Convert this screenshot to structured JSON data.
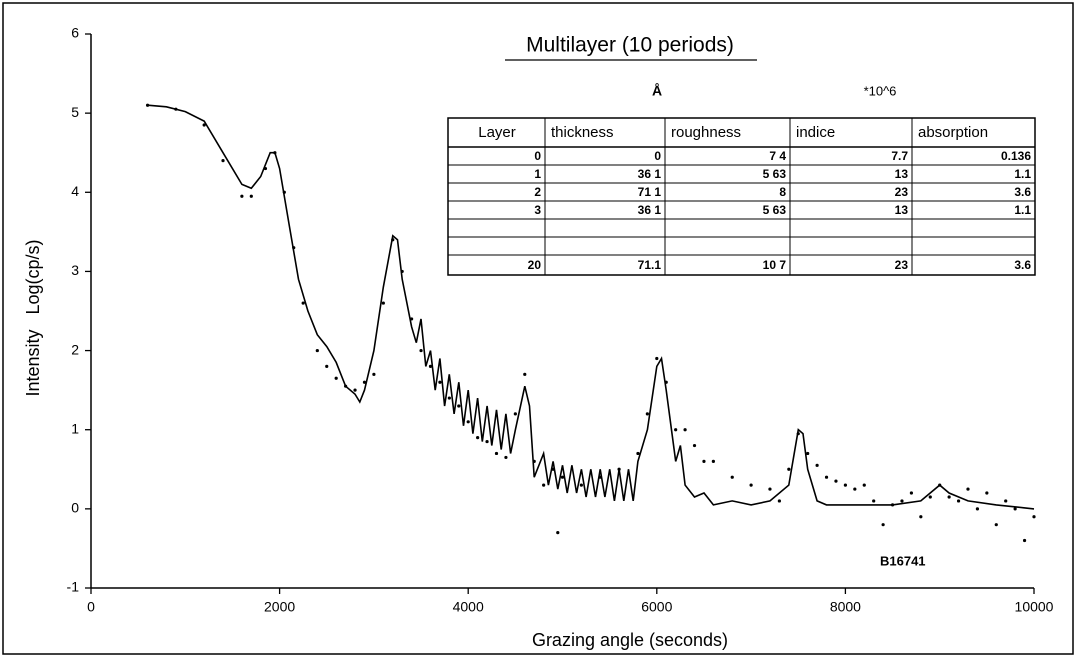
{
  "chart_data": {
    "type": "line",
    "title": "Multilayer (10 periods)",
    "xlabel": "Grazing angle (seconds)",
    "ylabel": "Intensity   Log(cp/s)",
    "annotation": "B16741",
    "xlim": [
      0,
      10000
    ],
    "xticks": [
      0,
      2000,
      4000,
      6000,
      8000,
      10000
    ],
    "ylim": [
      -1,
      6
    ],
    "yticks": [
      -1,
      0,
      1,
      2,
      3,
      4,
      5,
      6
    ],
    "series": [
      {
        "mode": "line",
        "color": "#000000",
        "x": [
          600,
          800,
          1000,
          1200,
          1400,
          1600,
          1700,
          1800,
          1900,
          1950,
          2000,
          2100,
          2200,
          2300,
          2400,
          2500,
          2600,
          2700,
          2800,
          2850,
          2900,
          3000,
          3100,
          3200,
          3250,
          3300,
          3400,
          3450,
          3500,
          3550,
          3600,
          3650,
          3700,
          3750,
          3800,
          3850,
          3900,
          3950,
          4000,
          4050,
          4100,
          4150,
          4200,
          4250,
          4300,
          4350,
          4400,
          4450,
          4500,
          4600,
          4650,
          4700,
          4800,
          4850,
          4900,
          4950,
          5000,
          5050,
          5100,
          5150,
          5200,
          5250,
          5300,
          5350,
          5400,
          5450,
          5500,
          5550,
          5600,
          5650,
          5700,
          5750,
          5800,
          5900,
          6000,
          6050,
          6100,
          6200,
          6250,
          6300,
          6400,
          6500,
          6600,
          6800,
          7000,
          7200,
          7400,
          7500,
          7550,
          7600,
          7700,
          7800,
          8000,
          8500,
          8800,
          9000,
          9100,
          9300,
          9600,
          10000
        ],
        "values": [
          5.1,
          5.08,
          5.02,
          4.9,
          4.5,
          4.1,
          4.05,
          4.2,
          4.5,
          4.5,
          4.3,
          3.6,
          2.9,
          2.5,
          2.2,
          2.05,
          1.85,
          1.55,
          1.45,
          1.35,
          1.5,
          2.0,
          2.8,
          3.45,
          3.4,
          2.9,
          2.3,
          2.1,
          2.4,
          1.8,
          2.0,
          1.5,
          1.9,
          1.3,
          1.7,
          1.2,
          1.6,
          1.05,
          1.5,
          0.95,
          1.4,
          0.85,
          1.3,
          0.8,
          1.25,
          0.75,
          1.2,
          0.7,
          1.0,
          1.55,
          1.3,
          0.4,
          0.7,
          0.3,
          0.6,
          0.25,
          0.55,
          0.2,
          0.55,
          0.2,
          0.5,
          0.15,
          0.5,
          0.15,
          0.5,
          0.15,
          0.5,
          0.1,
          0.5,
          0.1,
          0.5,
          0.1,
          0.6,
          1.0,
          1.8,
          1.9,
          1.5,
          0.6,
          0.8,
          0.3,
          0.15,
          0.2,
          0.05,
          0.1,
          0.05,
          0.1,
          0.3,
          1.0,
          0.95,
          0.5,
          0.1,
          0.05,
          0.05,
          0.05,
          0.1,
          0.3,
          0.2,
          0.1,
          0.05,
          0.0
        ]
      },
      {
        "mode": "points",
        "color": "#000000",
        "x": [
          600,
          900,
          1200,
          1400,
          1600,
          1700,
          1850,
          1950,
          2050,
          2150,
          2250,
          2400,
          2500,
          2600,
          2700,
          2800,
          2900,
          3000,
          3100,
          3200,
          3300,
          3400,
          3500,
          3600,
          3700,
          3800,
          3900,
          4000,
          4100,
          4200,
          4300,
          4400,
          4500,
          4600,
          4700,
          4800,
          4900,
          4950,
          5000,
          5200,
          5400,
          5600,
          5800,
          5900,
          6000,
          6100,
          6200,
          6300,
          6400,
          6500,
          6600,
          6800,
          7000,
          7200,
          7300,
          7400,
          7500,
          7600,
          7700,
          7800,
          7900,
          8000,
          8100,
          8200,
          8300,
          8400,
          8500,
          8600,
          8700,
          8800,
          8900,
          9000,
          9100,
          9200,
          9300,
          9400,
          9500,
          9600,
          9700,
          9800,
          9900,
          10000
        ],
        "values": [
          5.1,
          5.05,
          4.85,
          4.4,
          3.95,
          3.95,
          4.3,
          4.5,
          4.0,
          3.3,
          2.6,
          2.0,
          1.8,
          1.65,
          1.55,
          1.5,
          1.6,
          1.7,
          2.6,
          3.4,
          3.0,
          2.4,
          2.0,
          1.8,
          1.6,
          1.4,
          1.3,
          1.1,
          0.9,
          0.85,
          0.7,
          0.65,
          1.2,
          1.7,
          0.6,
          0.3,
          0.5,
          -0.3,
          0.4,
          0.3,
          0.4,
          0.5,
          0.7,
          1.2,
          1.9,
          1.6,
          1.0,
          1.0,
          0.8,
          0.6,
          0.6,
          0.4,
          0.3,
          0.25,
          0.1,
          0.5,
          0.95,
          0.7,
          0.55,
          0.4,
          0.35,
          0.3,
          0.25,
          0.3,
          0.1,
          -0.2,
          0.05,
          0.1,
          0.2,
          -0.1,
          0.15,
          0.3,
          0.15,
          0.1,
          0.25,
          0.0,
          0.2,
          -0.2,
          0.1,
          0.0,
          -0.4,
          -0.1
        ]
      }
    ]
  },
  "table": {
    "units": [
      "Å",
      "*10^6"
    ],
    "header": [
      "Layer",
      "thickness",
      "roughness",
      "indice",
      "absorption"
    ],
    "rows": [
      [
        "0",
        "0",
        "7 4",
        "7.7",
        "0.136"
      ],
      [
        "1",
        "36 1",
        "5 63",
        "13",
        "1.1"
      ],
      [
        "2",
        "71 1",
        "8",
        "23",
        "3.6"
      ],
      [
        "3",
        "36 1",
        "5 63",
        "13",
        "1.1"
      ],
      [
        "20",
        "71.1",
        "10 7",
        "23",
        "3.6"
      ]
    ]
  }
}
